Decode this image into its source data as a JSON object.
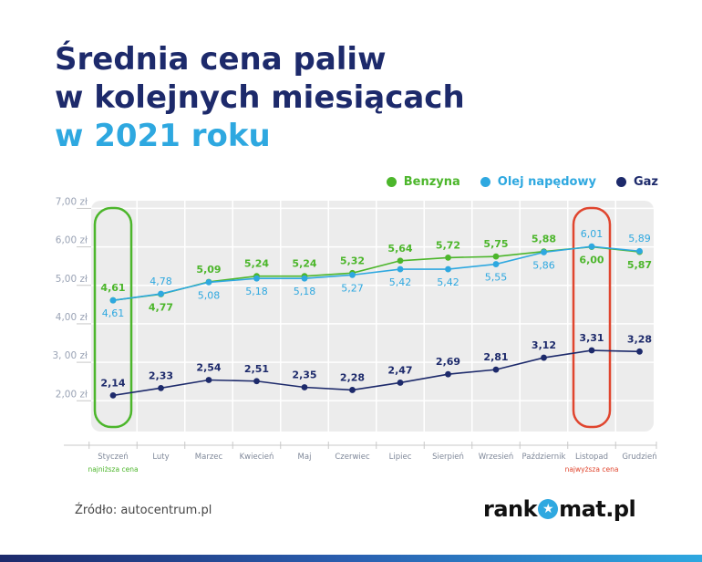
{
  "title": {
    "line1": "Średnia cena paliw",
    "line2": "w kolejnych miesiącach",
    "line3": "w 2021 roku"
  },
  "source": "Źródło: autocentrum.pl",
  "logo": {
    "before": "rank",
    "after": "mat.pl",
    "star_icon": "star-icon"
  },
  "colors": {
    "benzyna": "#4cb62b",
    "olej": "#2ea8e0",
    "gaz": "#1d2a6b",
    "min_highlight": "#4cb62b",
    "max_highlight": "#e0452e",
    "plot_bg": "#ececec",
    "title": "#1d2a6b",
    "title_accent": "#2ea8e0"
  },
  "chart_data": {
    "type": "line",
    "categories": [
      "Styczeń",
      "Luty",
      "Marzec",
      "Kwiecień",
      "Maj",
      "Czerwiec",
      "Lipiec",
      "Sierpień",
      "Wrzesień",
      "Październik",
      "Listopad",
      "Grudzień"
    ],
    "series": [
      {
        "name": "Benzyna",
        "key": "benzyna",
        "values": [
          4.61,
          4.77,
          5.09,
          5.24,
          5.24,
          5.32,
          5.64,
          5.72,
          5.75,
          5.88,
          6.0,
          5.87
        ],
        "labels": [
          "4,61",
          "4,77",
          "5,09",
          "5,24",
          "5,24",
          "5,32",
          "5,64",
          "5,72",
          "5,75",
          "5,88",
          "6,00",
          "5,87"
        ]
      },
      {
        "name": "Olej napędowy",
        "key": "olej",
        "values": [
          4.61,
          4.78,
          5.08,
          5.18,
          5.18,
          5.27,
          5.42,
          5.42,
          5.55,
          5.86,
          6.01,
          5.89
        ],
        "labels": [
          "4,61",
          "4,78",
          "5,08",
          "5,18",
          "5,18",
          "5,27",
          "5,42",
          "5,42",
          "5,55",
          "5,86",
          "6,01",
          "5,89"
        ]
      },
      {
        "name": "Gaz",
        "key": "gaz",
        "values": [
          2.14,
          2.33,
          2.54,
          2.51,
          2.35,
          2.28,
          2.47,
          2.69,
          2.81,
          3.12,
          3.31,
          3.28
        ],
        "labels": [
          "2,14",
          "2,33",
          "2,54",
          "2,51",
          "2,35",
          "2,28",
          "2,47",
          "2,69",
          "2,81",
          "3,12",
          "3,31",
          "3,28"
        ]
      }
    ],
    "y_ticks": [
      {
        "value": 7,
        "label": "7,00 zł"
      },
      {
        "value": 6,
        "label": "6,00 zł"
      },
      {
        "value": 5,
        "label": "5,00 zł"
      },
      {
        "value": 4,
        "label": "4,00 zł"
      },
      {
        "value": 3,
        "label": "3, 00 zł"
      },
      {
        "value": 2,
        "label": "2,00 zł"
      }
    ],
    "ylim": [
      1.2,
      7.2
    ],
    "grid": true,
    "legend_position": "top-right",
    "annotations": [
      {
        "category": "Styczeń",
        "text": "najniższa cena",
        "style": "min"
      },
      {
        "category": "Listopad",
        "text": "najwyższa cena",
        "style": "max"
      }
    ]
  }
}
